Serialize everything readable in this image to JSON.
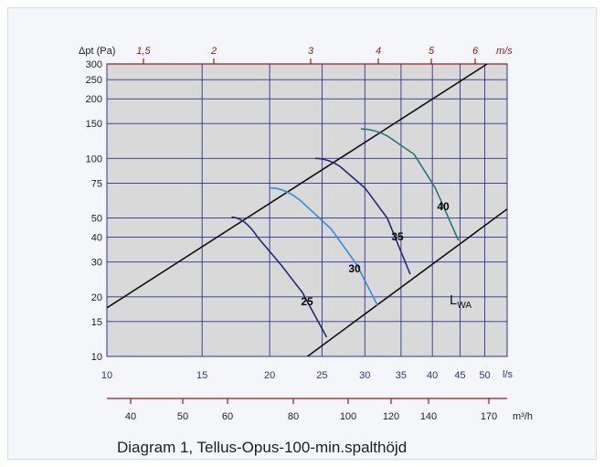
{
  "chart_data": {
    "type": "line",
    "title": "Diagram 1, Tellus-Opus-100-min.spalthöjd",
    "y_axis": {
      "label": "Δpt (Pa)",
      "scale": "log",
      "range": [
        10,
        300
      ],
      "ticks": [
        "10",
        "15",
        "20",
        "30",
        "40",
        "50",
        "75",
        "100",
        "150",
        "200",
        "250",
        "300"
      ]
    },
    "x_axis_ls": {
      "unit": "l/s",
      "scale": "log",
      "range": [
        10,
        55
      ],
      "ticks": [
        "10",
        "15",
        "20",
        "25",
        "30",
        "35",
        "40",
        "45",
        "50"
      ]
    },
    "x_axis_m3h": {
      "unit": "m³/h",
      "ticks": [
        "40",
        "50",
        "60",
        "80",
        "100",
        "120",
        "140",
        "170"
      ]
    },
    "x_axis_ms": {
      "unit": "m/s",
      "ticks": [
        "1,5",
        "2",
        "3",
        "4",
        "5",
        "6"
      ]
    },
    "boundary_lines": [
      {
        "x": [
          10,
          50.5
        ],
        "y": [
          17.6,
          300
        ]
      },
      {
        "x": [
          23.5,
          55
        ],
        "y": [
          10,
          55.5
        ]
      }
    ],
    "series": [
      {
        "name": "25",
        "color": "#27287a",
        "x": [
          17,
          19,
          21,
          23,
          25.5
        ],
        "y": [
          50.5,
          40,
          29,
          21,
          12.5
        ]
      },
      {
        "name": "30",
        "color": "#2f8de0",
        "x": [
          20,
          23,
          26,
          29,
          31.7
        ],
        "y": [
          71,
          60,
          44,
          29,
          18
        ]
      },
      {
        "name": "35",
        "color": "#27287a",
        "x": [
          24.3,
          27,
          30,
          33,
          36.4
        ],
        "y": [
          100,
          91,
          71,
          50,
          26
        ]
      },
      {
        "name": "40",
        "color": "#1f7a78",
        "x": [
          29.5,
          33,
          37,
          40.5,
          44.7
        ],
        "y": [
          141,
          130,
          105,
          71,
          38.5
        ]
      }
    ],
    "annotations": [
      {
        "text": "L",
        "sub": "WA"
      }
    ],
    "colors": {
      "background": "#d9d9d9",
      "grid": "#2e3192",
      "top_axis": "#a11a1a",
      "bottom_axis": "#a11a1a",
      "curve_label": "#000000"
    }
  }
}
